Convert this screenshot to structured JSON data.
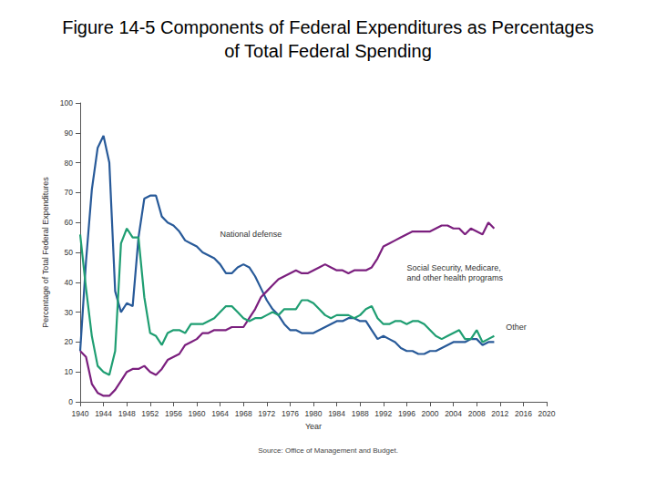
{
  "chart_data": {
    "type": "line",
    "title": "Figure 14-5 Components of Federal Expenditures as Percentages\nof Total Federal Spending",
    "x_label": "Year",
    "y_label": "Percentage of Total Federal Expenditures",
    "caption": "Source: Office of Management and Budget.",
    "x": [
      1940,
      1941,
      1942,
      1943,
      1944,
      1945,
      1946,
      1947,
      1948,
      1949,
      1950,
      1951,
      1952,
      1953,
      1954,
      1955,
      1956,
      1957,
      1958,
      1959,
      1960,
      1961,
      1962,
      1963,
      1964,
      1965,
      1966,
      1967,
      1968,
      1969,
      1970,
      1971,
      1972,
      1973,
      1974,
      1975,
      1976,
      1977,
      1978,
      1979,
      1980,
      1981,
      1982,
      1983,
      1984,
      1985,
      1986,
      1987,
      1988,
      1989,
      1990,
      1991,
      1992,
      1993,
      1994,
      1995,
      1996,
      1997,
      1998,
      1999,
      2000,
      2001,
      2002,
      2003,
      2004,
      2005,
      2006,
      2007,
      2008,
      2009,
      2010,
      2011
    ],
    "series": [
      {
        "name": "National defense",
        "color": "#285a99",
        "label_at": [
          1964,
          56
        ],
        "values": [
          17,
          47,
          71,
          85,
          89,
          80,
          37,
          30,
          33,
          32,
          55,
          68,
          69,
          69,
          62,
          60,
          59,
          57,
          54,
          53,
          52,
          50,
          49,
          48,
          46,
          43,
          43,
          45,
          46,
          45,
          42,
          38,
          34,
          31,
          29,
          26,
          24,
          24,
          23,
          23,
          23,
          24,
          25,
          26,
          27,
          27,
          28,
          28,
          27,
          27,
          24,
          21,
          22,
          21,
          20,
          18,
          17,
          17,
          16,
          16,
          17,
          17,
          18,
          19,
          20,
          20,
          20,
          21,
          21,
          19,
          20,
          20
        ]
      },
      {
        "name": "Social Security, Medicare,\nand other health programs",
        "color": "#7b1f7e",
        "label_at": [
          1996,
          43
        ],
        "values": [
          17,
          15,
          6,
          3,
          2,
          2,
          4,
          7,
          10,
          11,
          11,
          12,
          10,
          9,
          11,
          14,
          15,
          16,
          19,
          20,
          21,
          23,
          23,
          24,
          24,
          24,
          25,
          25,
          25,
          28,
          31,
          35,
          37,
          39,
          41,
          42,
          43,
          44,
          43,
          43,
          44,
          45,
          46,
          45,
          44,
          44,
          43,
          44,
          44,
          44,
          45,
          48,
          52,
          53,
          54,
          55,
          56,
          57,
          57,
          57,
          57,
          58,
          59,
          59,
          58,
          58,
          56,
          58,
          57,
          56,
          60,
          58
        ]
      },
      {
        "name": "Other",
        "color": "#1f9e72",
        "label_at": [
          2013,
          25
        ],
        "values": [
          56,
          38,
          22,
          12,
          10,
          9,
          17,
          53,
          58,
          55,
          55,
          35,
          23,
          22,
          19,
          23,
          24,
          24,
          23,
          26,
          26,
          26,
          27,
          28,
          30,
          32,
          32,
          30,
          28,
          27,
          28,
          28,
          29,
          30,
          29,
          31,
          31,
          31,
          34,
          34,
          33,
          31,
          29,
          28,
          29,
          29,
          29,
          28,
          29,
          31,
          32,
          28,
          26,
          26,
          27,
          27,
          26,
          27,
          27,
          26,
          24,
          22,
          21,
          22,
          23,
          24,
          21,
          21,
          24,
          20,
          21,
          22
        ]
      }
    ],
    "xlim": [
      1940,
      2020
    ],
    "xticks": [
      1940,
      1944,
      1948,
      1952,
      1956,
      1960,
      1964,
      1968,
      1972,
      1976,
      1980,
      1984,
      1988,
      1992,
      1996,
      2000,
      2004,
      2008,
      2012,
      2016,
      2020
    ],
    "ylim": [
      0,
      100
    ],
    "yticks": [
      0,
      10,
      20,
      30,
      40,
      50,
      60,
      70,
      80,
      90,
      100
    ],
    "grid": false
  }
}
